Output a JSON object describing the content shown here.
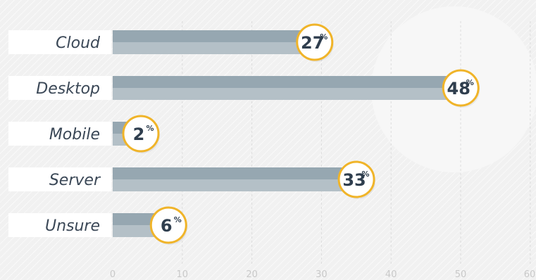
{
  "chart_data": {
    "type": "bar",
    "orientation": "horizontal",
    "categories": [
      "Cloud",
      "Desktop",
      "Mobile",
      "Server",
      "Unsure"
    ],
    "values": [
      27,
      48,
      2,
      33,
      6
    ],
    "value_suffix": "%",
    "xlim": [
      0,
      60
    ],
    "xticks": [
      "0",
      "10",
      "20",
      "30",
      "40",
      "50",
      "60"
    ],
    "grid": true,
    "colors": {
      "bar_top": "#96a7b1",
      "bar_bottom": "#b4c0c7",
      "badge_ring": "#f0b429",
      "badge_fill": "#ffffff",
      "label_bg": "#ffffff"
    }
  }
}
